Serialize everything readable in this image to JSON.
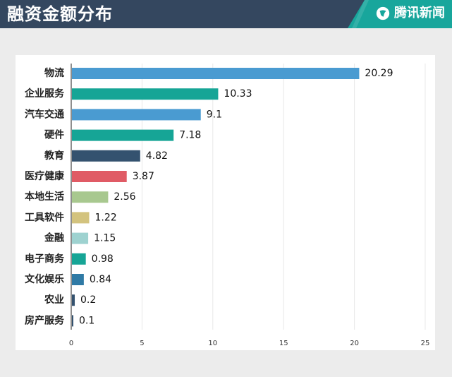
{
  "header": {
    "title": "融资金额分布",
    "brand_text": "腾讯新闻",
    "brand_icon": "tencent-news-logo-icon"
  },
  "colors": {
    "header_bg": "#34475f",
    "brand_bg": "#18a69c",
    "page_bg": "#ececec",
    "panel_bg": "#ffffff",
    "axis": "#444444",
    "grid": "#e8e8e8"
  },
  "chart_data": {
    "type": "bar",
    "orientation": "horizontal",
    "categories": [
      "物流",
      "企业服务",
      "汽车交通",
      "硬件",
      "教育",
      "医疗健康",
      "本地生活",
      "工具软件",
      "金融",
      "电子商务",
      "文化娱乐",
      "农业",
      "房产服务"
    ],
    "values": [
      20.29,
      10.33,
      9.1,
      7.18,
      4.82,
      3.87,
      2.56,
      1.22,
      1.15,
      0.98,
      0.84,
      0.2,
      0.1
    ],
    "colors": [
      "#4a9bd1",
      "#16a596",
      "#4a9bd1",
      "#16a596",
      "#34526f",
      "#e05b65",
      "#a8c88f",
      "#d3c37e",
      "#9ed2d0",
      "#16a596",
      "#2f7aa5",
      "#34526f",
      "#34526f"
    ],
    "xlim": [
      0,
      25
    ],
    "xticks": [
      0,
      5,
      10,
      15,
      20,
      25
    ],
    "grid": true
  }
}
